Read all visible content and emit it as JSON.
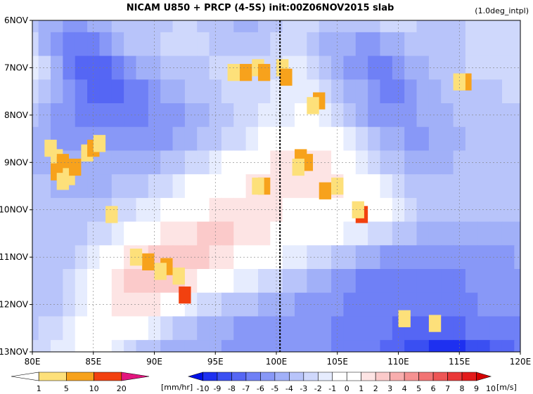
{
  "title": "NICAM   U850  +  PRCP  (4-5S)  init:00Z06NOV2015  slab",
  "subtitle": "(1.0deg_intpl)",
  "chart_data": {
    "type": "heatmap",
    "title": "NICAM   U850  +  PRCP  (4-5S)  init:00Z06NOV2015  slab",
    "subtitle": "(1.0deg_intpl)",
    "x_ticks": [
      "80E",
      "85E",
      "90E",
      "95E",
      "100E",
      "105E",
      "110E",
      "115E",
      "120E"
    ],
    "x_values": [
      80,
      85,
      90,
      95,
      100,
      105,
      110,
      115,
      120
    ],
    "xlim": [
      80,
      120
    ],
    "y_ticks": [
      "6NOV",
      "7NOV",
      "8NOV",
      "9NOV",
      "10NOV",
      "11NOV",
      "12NOV",
      "13NOV"
    ],
    "y_values": [
      6,
      7,
      8,
      9,
      10,
      11,
      12,
      13
    ],
    "ylim": [
      6,
      13
    ],
    "grid": true,
    "marker_line_lon": 100.3,
    "precip_colorbar": {
      "labels": [
        "1",
        "5",
        "10",
        "20"
      ],
      "unit": "[mm/hr]",
      "colors": [
        "#ffffff",
        "#fde07a",
        "#f7a21c",
        "#f2410f",
        "#e2157e"
      ]
    },
    "wind_colorbar": {
      "labels": [
        "-10",
        "-9",
        "-8",
        "-7",
        "-6",
        "-5",
        "-4",
        "-3",
        "-2",
        "-1",
        "0",
        "1",
        "2",
        "3",
        "4",
        "5",
        "6",
        "7",
        "8",
        "9",
        "10"
      ],
      "unit": "[m/s]",
      "colors": [
        "#0010e6",
        "#1e30f0",
        "#3a4ff2",
        "#5566f4",
        "#6f80f6",
        "#8898f7",
        "#a1b0f8",
        "#b8c4fa",
        "#cfd8fc",
        "#e6ecfe",
        "#ffffff",
        "#ffffff",
        "#fde4e4",
        "#fbcaca",
        "#f8aeae",
        "#f59292",
        "#f27474",
        "#ee5656",
        "#ea3838",
        "#e31a1a",
        "#d40000"
      ]
    },
    "wind_series": [
      {
        "time": 6.0,
        "values": [
          -3,
          -4,
          -4,
          -5,
          -5,
          -4,
          -4,
          -3,
          -3,
          -3,
          -3,
          -3,
          -2,
          -2,
          -3,
          -3,
          -3,
          -4,
          -4,
          -3,
          -3,
          -2,
          -2,
          -2,
          -3,
          -3,
          -3,
          -3,
          -3,
          -2,
          -2,
          -2,
          -3,
          -3,
          -3,
          -3,
          -2,
          -2,
          -2,
          -2,
          -2
        ]
      },
      {
        "time": 6.5,
        "values": [
          -2,
          -4,
          -5,
          -6,
          -6,
          -6,
          -5,
          -4,
          -3,
          -3,
          -3,
          -2,
          -2,
          -2,
          -2,
          -3,
          -3,
          -3,
          -3,
          -3,
          -2,
          -2,
          -2,
          -3,
          -4,
          -4,
          -4,
          -5,
          -5,
          -4,
          -4,
          -3,
          -3,
          -3,
          -3,
          -3,
          -2,
          -2,
          -2,
          -2,
          -2
        ]
      },
      {
        "time": 7.0,
        "values": [
          -1,
          -2,
          -4,
          -6,
          -7,
          -7,
          -7,
          -6,
          -5,
          -4,
          -4,
          -3,
          -3,
          -3,
          -3,
          -2,
          -2,
          -2,
          -2,
          -2,
          -2,
          -1,
          -1,
          -2,
          -3,
          -4,
          -5,
          -5,
          -6,
          -6,
          -5,
          -4,
          -4,
          -3,
          -3,
          -3,
          -2,
          -2,
          -2,
          -2,
          -2
        ]
      },
      {
        "time": 7.5,
        "values": [
          -2,
          -3,
          -4,
          -5,
          -6,
          -7,
          -7,
          -7,
          -6,
          -6,
          -5,
          -4,
          -4,
          -3,
          -3,
          -3,
          -2,
          -2,
          -2,
          -2,
          -1,
          -1,
          -1,
          -1,
          -2,
          -3,
          -4,
          -4,
          -5,
          -6,
          -6,
          -5,
          -4,
          -4,
          -3,
          -3,
          -3,
          -3,
          -3,
          -2,
          -2
        ]
      },
      {
        "time": 8.0,
        "values": [
          -3,
          -4,
          -5,
          -5,
          -6,
          -6,
          -6,
          -6,
          -6,
          -6,
          -5,
          -5,
          -5,
          -4,
          -4,
          -3,
          -3,
          -2,
          -2,
          -1,
          -1,
          -1,
          0,
          0,
          -1,
          -2,
          -3,
          -4,
          -5,
          -5,
          -5,
          -5,
          -4,
          -4,
          -4,
          -3,
          -3,
          -3,
          -3,
          -3,
          -3
        ]
      },
      {
        "time": 8.5,
        "values": [
          -4,
          -4,
          -5,
          -5,
          -5,
          -5,
          -5,
          -5,
          -5,
          -5,
          -5,
          -5,
          -4,
          -4,
          -3,
          -3,
          -2,
          -2,
          -1,
          0,
          0,
          1,
          1,
          1,
          1,
          0,
          -1,
          -2,
          -3,
          -4,
          -4,
          -5,
          -5,
          -4,
          -4,
          -4,
          -3,
          -3,
          -3,
          -3,
          -3
        ]
      },
      {
        "time": 9.0,
        "values": [
          -4,
          -4,
          -4,
          -4,
          -4,
          -4,
          -4,
          -4,
          -4,
          -4,
          -4,
          -3,
          -3,
          -2,
          -2,
          -1,
          0,
          0,
          1,
          1,
          2,
          2,
          2,
          2,
          2,
          1,
          0,
          -1,
          -2,
          -3,
          -3,
          -4,
          -4,
          -4,
          -4,
          -3,
          -3,
          -3,
          -3,
          -3,
          -3
        ]
      },
      {
        "time": 9.5,
        "values": [
          -3,
          -3,
          -4,
          -4,
          -4,
          -4,
          -4,
          -3,
          -3,
          -3,
          -2,
          -2,
          -1,
          0,
          0,
          1,
          1,
          1,
          2,
          2,
          2,
          2,
          2,
          2,
          2,
          2,
          1,
          1,
          0,
          -1,
          -2,
          -3,
          -3,
          -3,
          -3,
          -3,
          -3,
          -3,
          -3,
          -3,
          -3
        ]
      },
      {
        "time": 10.0,
        "values": [
          -3,
          -3,
          -3,
          -3,
          -3,
          -3,
          -3,
          -2,
          -2,
          -1,
          -1,
          0,
          0,
          1,
          1,
          2,
          2,
          2,
          2,
          2,
          2,
          1,
          1,
          1,
          1,
          1,
          1,
          1,
          1,
          0,
          -1,
          -2,
          -3,
          -3,
          -3,
          -3,
          -3,
          -3,
          -3,
          -3,
          -3
        ]
      },
      {
        "time": 10.5,
        "values": [
          -3,
          -3,
          -3,
          -3,
          -3,
          -2,
          -2,
          -1,
          0,
          1,
          1,
          2,
          2,
          2,
          3,
          3,
          3,
          2,
          2,
          2,
          1,
          1,
          0,
          0,
          0,
          0,
          -1,
          -1,
          -2,
          -2,
          -3,
          -3,
          -4,
          -4,
          -4,
          -4,
          -4,
          -4,
          -4,
          -4,
          -4
        ]
      },
      {
        "time": 11.0,
        "values": [
          -3,
          -3,
          -3,
          -3,
          -2,
          -1,
          0,
          1,
          2,
          2,
          3,
          3,
          3,
          3,
          3,
          2,
          2,
          1,
          1,
          0,
          0,
          -1,
          -1,
          -2,
          -2,
          -3,
          -3,
          -4,
          -4,
          -5,
          -5,
          -5,
          -5,
          -5,
          -5,
          -5,
          -5,
          -5,
          -5,
          -5,
          -4
        ]
      },
      {
        "time": 11.5,
        "values": [
          -3,
          -3,
          -3,
          -2,
          -1,
          0,
          1,
          2,
          3,
          3,
          3,
          3,
          3,
          2,
          1,
          0,
          0,
          -1,
          -1,
          -2,
          -2,
          -3,
          -3,
          -4,
          -4,
          -5,
          -5,
          -6,
          -6,
          -6,
          -6,
          -6,
          -6,
          -6,
          -6,
          -6,
          -5,
          -5,
          -5,
          -5,
          -5
        ]
      },
      {
        "time": 12.0,
        "values": [
          -3,
          -3,
          -3,
          -2,
          -1,
          0,
          1,
          2,
          2,
          2,
          2,
          1,
          0,
          -1,
          -2,
          -2,
          -3,
          -3,
          -3,
          -4,
          -4,
          -4,
          -5,
          -5,
          -5,
          -5,
          -6,
          -6,
          -6,
          -6,
          -6,
          -6,
          -6,
          -6,
          -6,
          -6,
          -6,
          -5,
          -5,
          -5,
          -5
        ]
      },
      {
        "time": 12.5,
        "values": [
          -3,
          -2,
          -2,
          -1,
          0,
          0,
          1,
          1,
          1,
          0,
          -1,
          -2,
          -3,
          -3,
          -4,
          -4,
          -4,
          -5,
          -5,
          -5,
          -5,
          -5,
          -5,
          -5,
          -5,
          -6,
          -6,
          -6,
          -6,
          -6,
          -7,
          -7,
          -7,
          -7,
          -7,
          -7,
          -6,
          -6,
          -6,
          -6,
          -6
        ]
      },
      {
        "time": 13.0,
        "values": [
          -2,
          -2,
          -1,
          -1,
          0,
          0,
          0,
          -1,
          -2,
          -3,
          -3,
          -4,
          -4,
          -4,
          -4,
          -4,
          -5,
          -5,
          -5,
          -5,
          -5,
          -5,
          -5,
          -5,
          -5,
          -6,
          -6,
          -6,
          -6,
          -7,
          -7,
          -8,
          -8,
          -9,
          -9,
          -9,
          -8,
          -8,
          -7,
          -7,
          -6
        ]
      }
    ],
    "precip_cells": [
      {
        "lon": 82,
        "time": 8.9,
        "level": 1
      },
      {
        "lon": 82,
        "time": 9.2,
        "level": 2
      },
      {
        "lon": 82.5,
        "time": 9.0,
        "level": 2
      },
      {
        "lon": 83,
        "time": 9.3,
        "level": 1
      },
      {
        "lon": 83.5,
        "time": 9.1,
        "level": 2
      },
      {
        "lon": 84.5,
        "time": 8.8,
        "level": 1
      },
      {
        "lon": 85,
        "time": 8.7,
        "level": 2
      },
      {
        "lon": 85.5,
        "time": 8.6,
        "level": 1
      },
      {
        "lon": 81.5,
        "time": 8.7,
        "level": 1
      },
      {
        "lon": 82.5,
        "time": 9.4,
        "level": 1
      },
      {
        "lon": 96.5,
        "time": 7.1,
        "level": 1
      },
      {
        "lon": 97.5,
        "time": 7.1,
        "level": 2
      },
      {
        "lon": 98.5,
        "time": 7.0,
        "level": 1
      },
      {
        "lon": 99,
        "time": 7.1,
        "level": 2
      },
      {
        "lon": 100.5,
        "time": 7.0,
        "level": 1
      },
      {
        "lon": 100.8,
        "time": 7.2,
        "level": 2
      },
      {
        "lon": 103.5,
        "time": 7.7,
        "level": 2
      },
      {
        "lon": 103,
        "time": 7.8,
        "level": 1
      },
      {
        "lon": 102,
        "time": 8.9,
        "level": 2
      },
      {
        "lon": 102.5,
        "time": 9.0,
        "level": 2
      },
      {
        "lon": 101.8,
        "time": 9.1,
        "level": 1
      },
      {
        "lon": 99,
        "time": 9.5,
        "level": 2
      },
      {
        "lon": 98.5,
        "time": 9.5,
        "level": 1
      },
      {
        "lon": 104,
        "time": 9.6,
        "level": 2
      },
      {
        "lon": 105,
        "time": 9.5,
        "level": 1
      },
      {
        "lon": 107,
        "time": 10.1,
        "level": 3
      },
      {
        "lon": 106.7,
        "time": 10.0,
        "level": 1
      },
      {
        "lon": 86.5,
        "time": 10.1,
        "level": 1
      },
      {
        "lon": 89.5,
        "time": 11.1,
        "level": 2
      },
      {
        "lon": 91,
        "time": 11.2,
        "level": 2
      },
      {
        "lon": 90.5,
        "time": 11.3,
        "level": 1
      },
      {
        "lon": 92,
        "time": 11.4,
        "level": 1
      },
      {
        "lon": 88.5,
        "time": 11.0,
        "level": 1
      },
      {
        "lon": 92.5,
        "time": 11.8,
        "level": 3
      },
      {
        "lon": 115.5,
        "time": 7.3,
        "level": 2
      },
      {
        "lon": 115,
        "time": 7.3,
        "level": 1
      },
      {
        "lon": 110.5,
        "time": 12.3,
        "level": 1
      },
      {
        "lon": 113,
        "time": 12.4,
        "level": 1
      }
    ]
  }
}
